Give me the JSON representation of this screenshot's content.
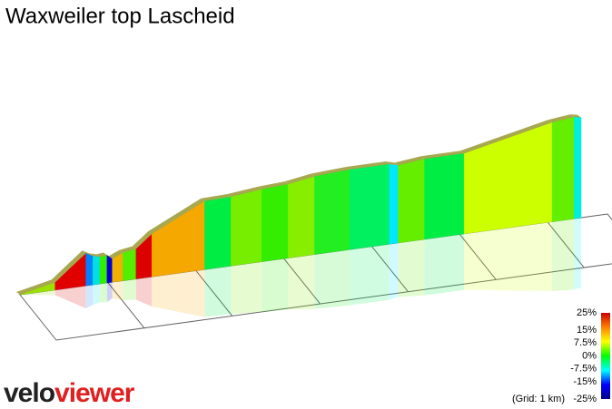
{
  "chart_data": {
    "type": "profile3d",
    "title": "Waxweiler top Lascheid",
    "segments": [
      {
        "length": 0.4,
        "gradient": 4,
        "color": "#9be000"
      },
      {
        "length": 0.35,
        "gradient": 15,
        "color": "#e00000"
      },
      {
        "length": 0.08,
        "gradient": -10,
        "color": "#0080ff"
      },
      {
        "length": 0.08,
        "gradient": -5,
        "color": "#00e0e0"
      },
      {
        "length": 0.08,
        "gradient": 2,
        "color": "#33ee00"
      },
      {
        "length": 0.06,
        "gradient": -15,
        "color": "#0000d0"
      },
      {
        "length": 0.12,
        "gradient": 8,
        "color": "#f0b000"
      },
      {
        "length": 0.15,
        "gradient": 3,
        "color": "#55ee00"
      },
      {
        "length": 0.18,
        "gradient": 15,
        "color": "#dd0000"
      },
      {
        "length": 0.6,
        "gradient": 9,
        "color": "#f5a800"
      },
      {
        "length": 0.3,
        "gradient": 0.5,
        "color": "#00ee44"
      },
      {
        "length": 0.35,
        "gradient": 2,
        "color": "#77ee00"
      },
      {
        "length": 0.3,
        "gradient": 1,
        "color": "#33ee00"
      },
      {
        "length": 0.3,
        "gradient": 3,
        "color": "#88ee00"
      },
      {
        "length": 0.4,
        "gradient": 1,
        "color": "#22ee22"
      },
      {
        "length": 0.45,
        "gradient": 0,
        "color": "#00f060"
      },
      {
        "length": 0.1,
        "gradient": -5,
        "color": "#00e8ff"
      },
      {
        "length": 0.3,
        "gradient": 2,
        "color": "#66ee00"
      },
      {
        "length": 0.45,
        "gradient": 0,
        "color": "#00ee44"
      },
      {
        "length": 1.0,
        "gradient": 4,
        "color": "#ccff00"
      },
      {
        "length": 0.25,
        "gradient": 2,
        "color": "#66ee00"
      },
      {
        "length": 0.08,
        "gradient": -4,
        "color": "#00eedd"
      }
    ],
    "grid_spacing_km": 1,
    "legend": {
      "ticks": [
        {
          "value": 25,
          "label": "25%"
        },
        {
          "value": 15,
          "label": "15%"
        },
        {
          "value": 7.5,
          "label": "7.5%"
        },
        {
          "value": 0,
          "label": "0%"
        },
        {
          "value": -7.5,
          "label": "-7.5%"
        },
        {
          "value": -15,
          "label": "-15%"
        },
        {
          "value": -25,
          "label": "-25%"
        }
      ],
      "colors": [
        "#00008b",
        "#0000ff",
        "#00ffff",
        "#00ff00",
        "#ffff00",
        "#ff8000",
        "#cc0000"
      ],
      "note": "(Grid: 1 km)"
    },
    "logo": [
      "velo",
      "viewer"
    ]
  }
}
